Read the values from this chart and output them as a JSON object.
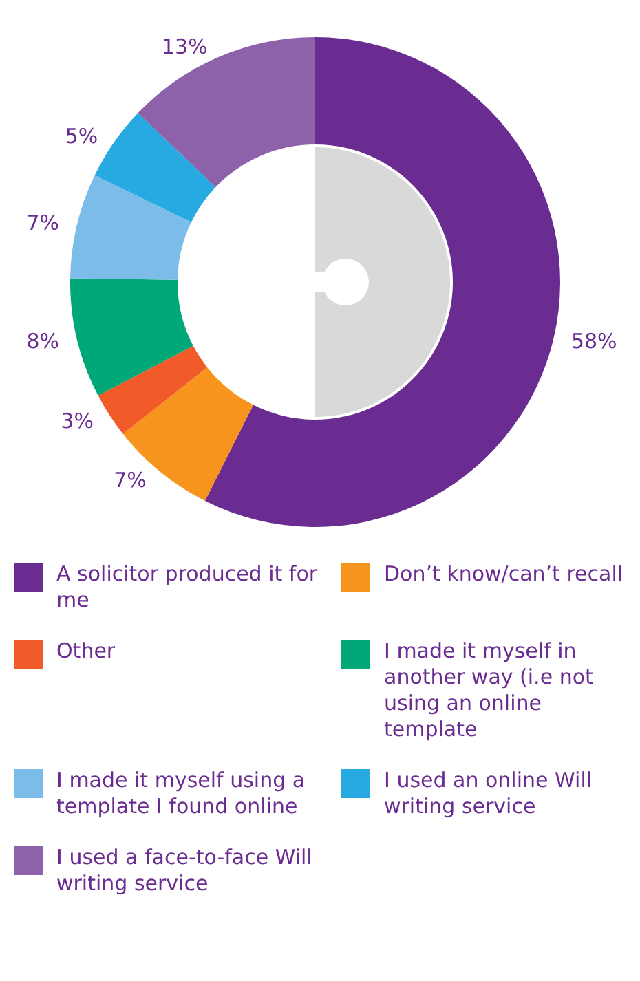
{
  "chart_data": {
    "type": "donut",
    "categories": [
      "A solicitor produced it for me",
      "Don’t know/can’t recall",
      "Other",
      "I made it myself in another way (i.e not using an online template",
      "I made it myself using a template I found online",
      "I used an online Will writing service",
      "I used a face-to-face Will writing service"
    ],
    "values": [
      58,
      7,
      3,
      8,
      7,
      5,
      13
    ],
    "colors": [
      "#6a2c91",
      "#f7941d",
      "#f15a29",
      "#00a878",
      "#7bbde8",
      "#27a9e1",
      "#8e62ab"
    ],
    "value_labels": [
      "58%",
      "7%",
      "3%",
      "8%",
      "7%",
      "5%",
      "13%"
    ],
    "legend": "bottom"
  }
}
